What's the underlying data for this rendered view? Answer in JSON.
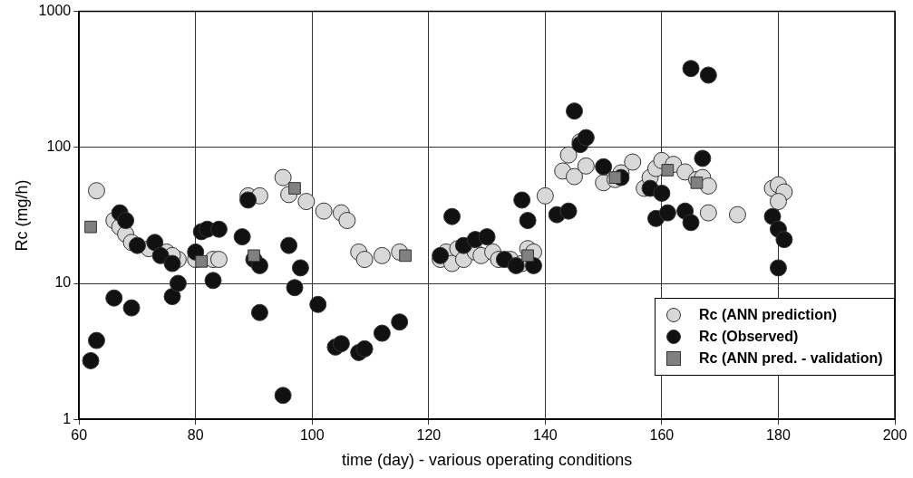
{
  "chart_data": {
    "type": "scatter",
    "xlabel": "time (day) - various operating conditions",
    "ylabel": "Rc (mg/h)",
    "log": "y",
    "grid": true,
    "legend": "bottom right",
    "xlim": [
      60,
      200
    ],
    "xticks": [
      60,
      80,
      100,
      120,
      140,
      160,
      180,
      200
    ],
    "ylim": [
      1,
      1000
    ],
    "yticks": [
      1,
      10,
      100,
      1000
    ],
    "series": [
      {
        "name": "Rc (ANN prediction)",
        "color": "#d8d8d8",
        "marker": "circle",
        "x": [
          63,
          66,
          67,
          68,
          69,
          72,
          75,
          77,
          76,
          80,
          83,
          84,
          89,
          91,
          95,
          96,
          99,
          102,
          105,
          106,
          108,
          109,
          112,
          115,
          122,
          123,
          124,
          125,
          126,
          128,
          129,
          131,
          132,
          134,
          136,
          137,
          138,
          140,
          143,
          144,
          145,
          146,
          147,
          150,
          152,
          153,
          155,
          157,
          158,
          159,
          160,
          162,
          164,
          166,
          167,
          168,
          168,
          173,
          179,
          180,
          181,
          180
        ],
        "values": [
          48,
          29,
          26,
          23,
          20,
          18,
          17,
          15,
          16,
          15,
          15,
          15,
          44,
          44,
          60,
          45,
          40,
          34,
          33,
          29,
          17,
          15,
          16,
          17,
          15,
          17,
          14,
          18,
          15,
          17,
          16,
          17,
          15,
          15,
          14,
          18,
          17,
          44,
          67,
          88,
          61,
          110,
          73,
          55,
          58,
          65,
          78,
          50,
          60,
          70,
          80,
          75,
          66,
          58,
          60,
          52,
          33,
          32,
          50,
          53,
          47,
          40
        ]
      },
      {
        "name": "Rc (Observed)",
        "color": "#111111",
        "marker": "circle",
        "x": [
          62,
          63,
          66,
          67,
          68,
          69,
          70,
          73,
          74,
          76,
          77,
          76,
          80,
          81,
          82,
          83,
          84,
          88,
          89,
          90,
          91,
          91,
          95,
          96,
          97,
          98,
          101,
          104,
          105,
          108,
          109,
          112,
          115,
          122,
          124,
          126,
          128,
          130,
          133,
          135,
          136,
          137,
          138,
          142,
          144,
          145,
          146,
          147,
          150,
          153,
          158,
          159,
          160,
          161,
          164,
          165,
          165,
          168,
          167,
          179,
          180,
          180,
          181
        ],
        "values": [
          2.7,
          3.8,
          7.8,
          33,
          29,
          6.6,
          19,
          20,
          16,
          8,
          10,
          14,
          17,
          24,
          25,
          10.5,
          25,
          22,
          41,
          15,
          6.1,
          13.5,
          1.5,
          19,
          9.3,
          13,
          7,
          3.4,
          3.6,
          3.1,
          3.3,
          4.3,
          5.2,
          16,
          31,
          19,
          21,
          22,
          15,
          13.5,
          41,
          29,
          13.5,
          32,
          34,
          185,
          105,
          118,
          72,
          60,
          50,
          30,
          46,
          33,
          34,
          380,
          28,
          340,
          83,
          31,
          25,
          13,
          21
        ]
      },
      {
        "name": "Rc (ANN pred. - validation)",
        "color": "#808080",
        "marker": "square",
        "x": [
          62,
          81,
          90,
          97,
          116,
          137,
          152,
          161,
          166
        ],
        "values": [
          26,
          14.5,
          16,
          50,
          16,
          16,
          60,
          68,
          55
        ]
      }
    ]
  }
}
